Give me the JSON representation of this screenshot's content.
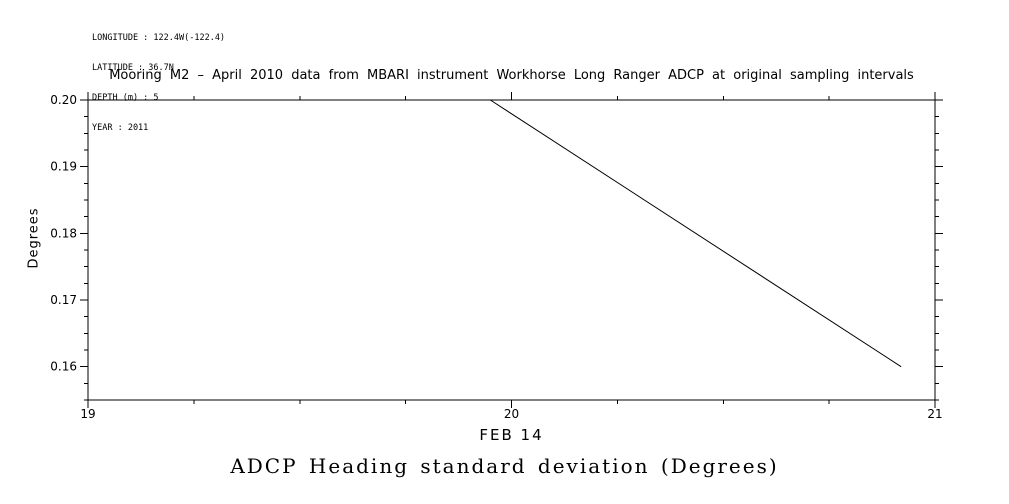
{
  "page": {
    "background": "#ffffff"
  },
  "metadata_block": {
    "lines": [
      "LONGITUDE : 122.4W(-122.4)",
      "LATITUDE : 36.7N",
      "DEPTH (m) : 5",
      "YEAR : 2011"
    ]
  },
  "chart_data": {
    "type": "line",
    "title": "Mooring M2 – April 2010 data from MBARI instrument Workhorse Long Ranger ADCP at original sampling intervals",
    "footer_title": "ADCP Heading standard deviation (Degrees)",
    "xlabel": "FEB 14",
    "ylabel": "Degrees",
    "xlim": [
      19,
      21
    ],
    "ylim": [
      0.155,
      0.2
    ],
    "x_ticks": [
      19,
      20,
      21
    ],
    "x_tick_labels": [
      "19",
      "20",
      "21"
    ],
    "x_minor_step": 0.25,
    "y_ticks": [
      0.16,
      0.17,
      0.18,
      0.19,
      0.2
    ],
    "y_tick_labels": [
      "0.16",
      "0.17",
      "0.18",
      "0.19",
      "0.20"
    ],
    "y_minor_step": 0.0025,
    "grid": false,
    "legend": false,
    "line_color": "#000000",
    "axis_color": "#000000",
    "series": [
      {
        "name": "ADCP heading standard deviation",
        "x": [
          19.95,
          20.92
        ],
        "y": [
          0.2,
          0.16
        ]
      }
    ]
  }
}
